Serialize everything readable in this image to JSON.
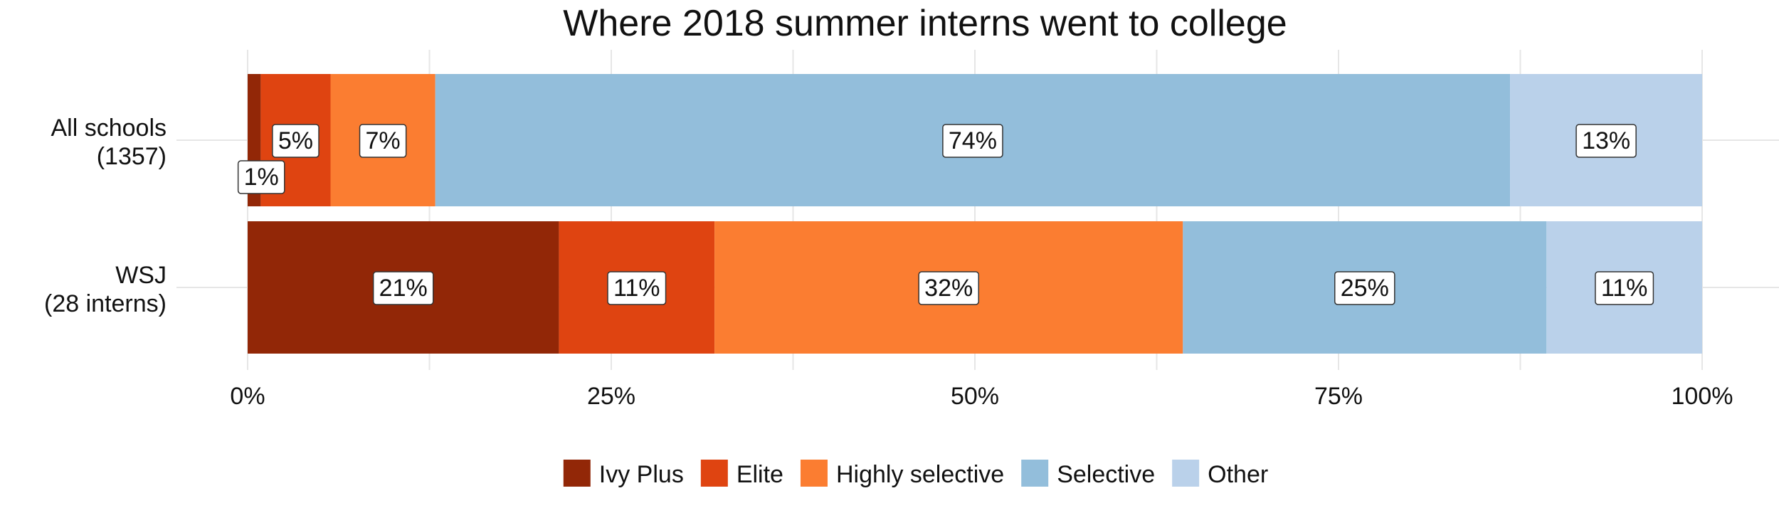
{
  "chart_data": {
    "type": "bar",
    "orientation": "horizontal",
    "stacked": true,
    "title": "Where 2018 summer interns went to college",
    "categories": [
      [
        "All schools",
        "(1357)"
      ],
      [
        "WSJ",
        "(28 interns)"
      ]
    ],
    "xlim": [
      0,
      100
    ],
    "x_ticks": [
      0,
      25,
      50,
      75,
      100
    ],
    "x_tick_labels": [
      "0%",
      "25%",
      "50%",
      "75%",
      "100%"
    ],
    "grid": true,
    "legend_position": "bottom",
    "series": [
      {
        "name": "Ivy Plus",
        "color": "#922707",
        "values": [
          0.9,
          21.4
        ],
        "labels": [
          "1%",
          "21%"
        ]
      },
      {
        "name": "Elite",
        "color": "#df4411",
        "values": [
          4.8,
          10.7
        ],
        "labels": [
          "5%",
          "11%"
        ]
      },
      {
        "name": "Highly selective",
        "color": "#fb7d31",
        "values": [
          7.2,
          32.2
        ],
        "labels": [
          "7%",
          "32%"
        ]
      },
      {
        "name": "Selective",
        "color": "#93bedb",
        "values": [
          73.9,
          25.0
        ],
        "labels": [
          "74%",
          "25%"
        ]
      },
      {
        "name": "Other",
        "color": "#bad1ea",
        "values": [
          13.2,
          10.7
        ],
        "labels": [
          "13%",
          "11%"
        ]
      }
    ]
  }
}
